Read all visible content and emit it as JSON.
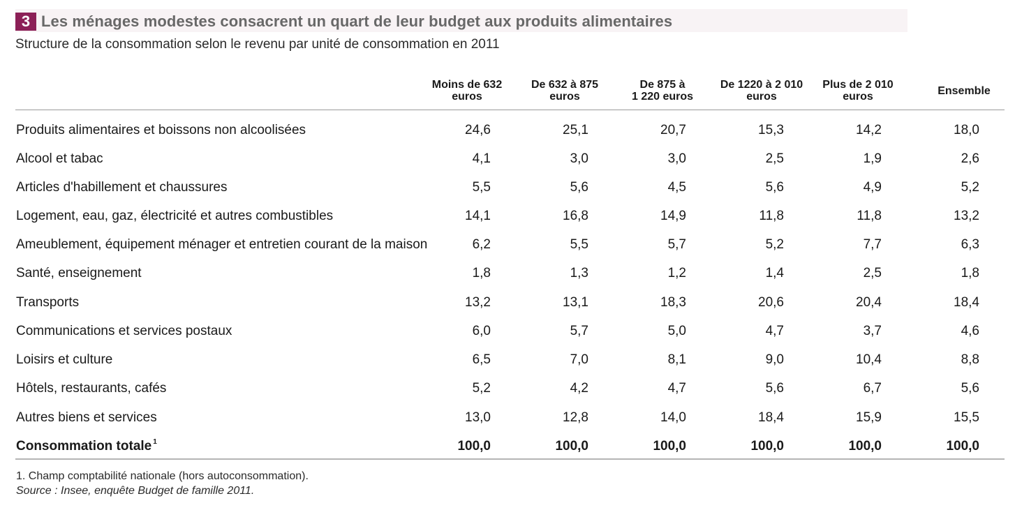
{
  "title": {
    "number": "3",
    "text": "Les ménages modestes consacrent un quart de leur budget aux produits alimentaires"
  },
  "subtitle": "Structure de la consommation selon le revenu par unité de consommation en 2011",
  "columns": [
    {
      "line1": "Moins de 632",
      "line2": "euros"
    },
    {
      "line1": "De 632 à 875",
      "line2": "euros"
    },
    {
      "line1": "De 875 à",
      "line2": "1 220 euros"
    },
    {
      "line1": "De 1220 à 2 010",
      "line2": "euros"
    },
    {
      "line1": "Plus de 2 010",
      "line2": "euros"
    },
    {
      "line1": "Ensemble",
      "line2": ""
    }
  ],
  "rows": [
    {
      "label": "Produits alimentaires et boissons non alcoolisées",
      "values": [
        "24,6",
        "25,1",
        "20,7",
        "15,3",
        "14,2",
        "18,0"
      ]
    },
    {
      "label": "Alcool et tabac",
      "values": [
        "4,1",
        "3,0",
        "3,0",
        "2,5",
        "1,9",
        "2,6"
      ]
    },
    {
      "label": "Articles d'habillement et chaussures",
      "values": [
        "5,5",
        "5,6",
        "4,5",
        "5,6",
        "4,9",
        "5,2"
      ]
    },
    {
      "label": "Logement, eau, gaz, électricité et autres combustibles",
      "values": [
        "14,1",
        "16,8",
        "14,9",
        "11,8",
        "11,8",
        "13,2"
      ]
    },
    {
      "label": "Ameublement, équipement ménager et entretien courant de la maison",
      "values": [
        "6,2",
        "5,5",
        "5,7",
        "5,2",
        "7,7",
        "6,3"
      ]
    },
    {
      "label": "Santé, enseignement",
      "values": [
        "1,8",
        "1,3",
        "1,2",
        "1,4",
        "2,5",
        "1,8"
      ]
    },
    {
      "label": "Transports",
      "values": [
        "13,2",
        "13,1",
        "18,3",
        "20,6",
        "20,4",
        "18,4"
      ]
    },
    {
      "label": "Communications et services postaux",
      "values": [
        "6,0",
        "5,7",
        "5,0",
        "4,7",
        "3,7",
        "4,6"
      ]
    },
    {
      "label": "Loisirs et culture",
      "values": [
        "6,5",
        "7,0",
        "8,1",
        "9,0",
        "10,4",
        "8,8"
      ]
    },
    {
      "label": "Hôtels, restaurants, cafés",
      "values": [
        "5,2",
        "4,2",
        "4,7",
        "5,6",
        "6,7",
        "5,6"
      ]
    },
    {
      "label": "Autres biens et services",
      "values": [
        "13,0",
        "12,8",
        "14,0",
        "18,4",
        "15,9",
        "15,5"
      ]
    }
  ],
  "total": {
    "label": "Consommation totale",
    "footnote_mark": "1",
    "values": [
      "100,0",
      "100,0",
      "100,0",
      "100,0",
      "100,0",
      "100,0"
    ]
  },
  "footnote": "1. Champ comptabilité nationale (hors autoconsommation).",
  "source": "Source : Insee, enquête Budget de famille 2011."
}
